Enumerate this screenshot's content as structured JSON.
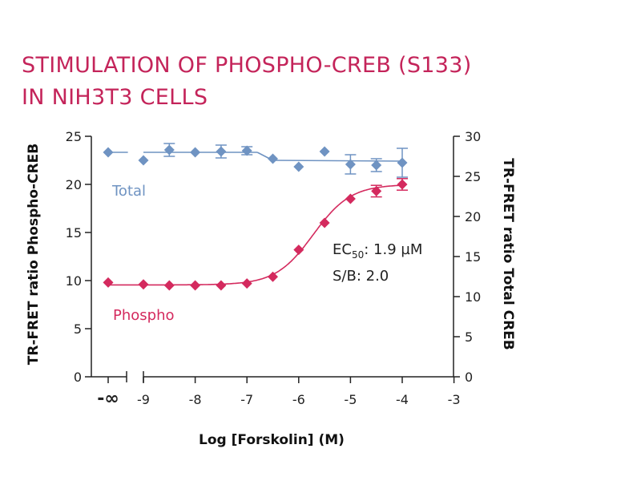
{
  "title_line1": "STIMULATION OF PHOSPHO-CREB (S133)",
  "title_line2": "IN NIH3T3 CELLS",
  "colors": {
    "title": "#c4245a",
    "phospho": "#d42a5e",
    "total": "#6f93c2",
    "axis": "#222222"
  },
  "chart_data": {
    "type": "scatter",
    "title": "STIMULATION OF PHOSPHO-CREB (S133) IN NIH3T3 CELLS",
    "xlabel": "Log [Forskolin] (M)",
    "ylabel_left": "TR-FRET ratio Phospho-CREB",
    "ylabel_right": "TR-FRET ratio Total CREB",
    "x_ticks": [
      "-∞",
      "-9",
      "-8",
      "-7",
      "-6",
      "-5",
      "-4",
      "-3"
    ],
    "xlim": [
      -10.8,
      -3
    ],
    "ylim_left": [
      0,
      25
    ],
    "ylim_right": [
      0,
      30
    ],
    "y_ticks_left": [
      "0",
      "5",
      "10",
      "15",
      "20",
      "25"
    ],
    "y_ticks_right": [
      "0",
      "5",
      "10",
      "15",
      "20",
      "25",
      "30"
    ],
    "series": [
      {
        "name": "Phospho",
        "axis": "left",
        "x": [
          -10.0,
          -9.0,
          -8.5,
          -8.0,
          -7.5,
          -7.0,
          -6.5,
          -6.0,
          -5.5,
          -5.0,
          -4.5,
          -4.0
        ],
        "y": [
          9.8,
          9.6,
          9.5,
          9.5,
          9.5,
          9.7,
          10.4,
          13.2,
          16.0,
          18.5,
          19.3,
          20.0
        ],
        "err": [
          0.1,
          0.1,
          0.1,
          0.1,
          0.1,
          0.1,
          0.1,
          0.2,
          0.2,
          0.2,
          0.6,
          0.6
        ],
        "fit": {
          "bottom": 9.55,
          "top": 20.0,
          "logEC50": -5.72,
          "hill": 1.2,
          "x_start": -10.0
        }
      },
      {
        "name": "Total",
        "axis": "right",
        "x": [
          -10.0,
          -9.0,
          -8.5,
          -8.0,
          -7.5,
          -7.0,
          -6.5,
          -6.0,
          -5.5,
          -5.0,
          -4.5,
          -4.0
        ],
        "y": [
          28.0,
          27.0,
          28.3,
          28.0,
          28.1,
          28.2,
          27.2,
          26.2,
          28.1,
          26.5,
          26.4,
          26.7
        ],
        "err": [
          0.0,
          0.0,
          0.8,
          0.0,
          0.8,
          0.5,
          0.0,
          0.0,
          0.0,
          1.2,
          0.8,
          1.8
        ],
        "fit": {
          "segments": [
            [
              -10.0,
              28.0,
              -9.3,
              28.0
            ],
            [
              -9.0,
              28.0,
              -6.8,
              28.0
            ],
            [
              -6.8,
              28.0,
              -6.5,
              27.0
            ],
            [
              -6.5,
              27.0,
              -4.0,
              26.9
            ]
          ]
        }
      }
    ],
    "annotations": {
      "ec50_prefix": "EC",
      "ec50_sub": "50",
      "ec50_value": ": 1.9 µM",
      "sb": "S/B: 2.0"
    }
  }
}
